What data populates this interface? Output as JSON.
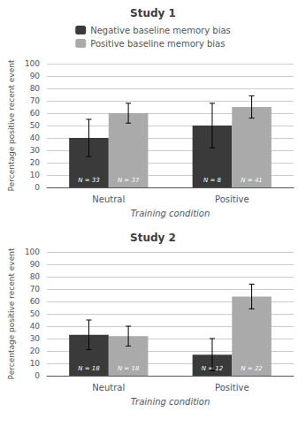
{
  "chart_data": [
    {
      "type": "bar",
      "title": "Study 1",
      "categories": [
        "Neutral",
        "Positive"
      ],
      "x_label": "Training condition",
      "y_label": "Percentage positive recent event",
      "series": [
        {
          "name": "Negative baseline memory bias",
          "color": "#3a3a3a",
          "values": [
            40,
            50
          ],
          "errors": [
            15,
            18
          ],
          "n_labels": [
            "N = 33",
            "N = 8"
          ]
        },
        {
          "name": "Positive baseline memory bias",
          "color": "#aaaaaa",
          "values": [
            60,
            65
          ],
          "errors": [
            8,
            9
          ],
          "n_labels": [
            "N = 37",
            "N = 41"
          ]
        }
      ],
      "ylim": [
        0,
        100
      ],
      "yticks": [
        0,
        10,
        20,
        30,
        40,
        50,
        60,
        70,
        80,
        90,
        100
      ],
      "grid": true,
      "legend": "top"
    },
    {
      "type": "bar",
      "title": "Study 2",
      "categories": [
        "Neutral",
        "Positive"
      ],
      "x_label": "Training condition",
      "y_label": "Percentage positive recent event",
      "series": [
        {
          "name": "Negative baseline memory bias",
          "color": "#3a3a3a",
          "values": [
            33,
            17
          ],
          "errors": [
            12,
            13
          ],
          "n_labels": [
            "N = 18",
            "N = 12"
          ]
        },
        {
          "name": "Positive baseline memory bias",
          "color": "#aaaaaa",
          "values": [
            32,
            64
          ],
          "errors": [
            8,
            10
          ],
          "n_labels": [
            "N = 18",
            "N = 22"
          ]
        }
      ],
      "ylim": [
        0,
        100
      ],
      "yticks": [
        0,
        10,
        20,
        30,
        40,
        50,
        60,
        70,
        80,
        90,
        100
      ],
      "grid": true,
      "legend": false
    }
  ]
}
